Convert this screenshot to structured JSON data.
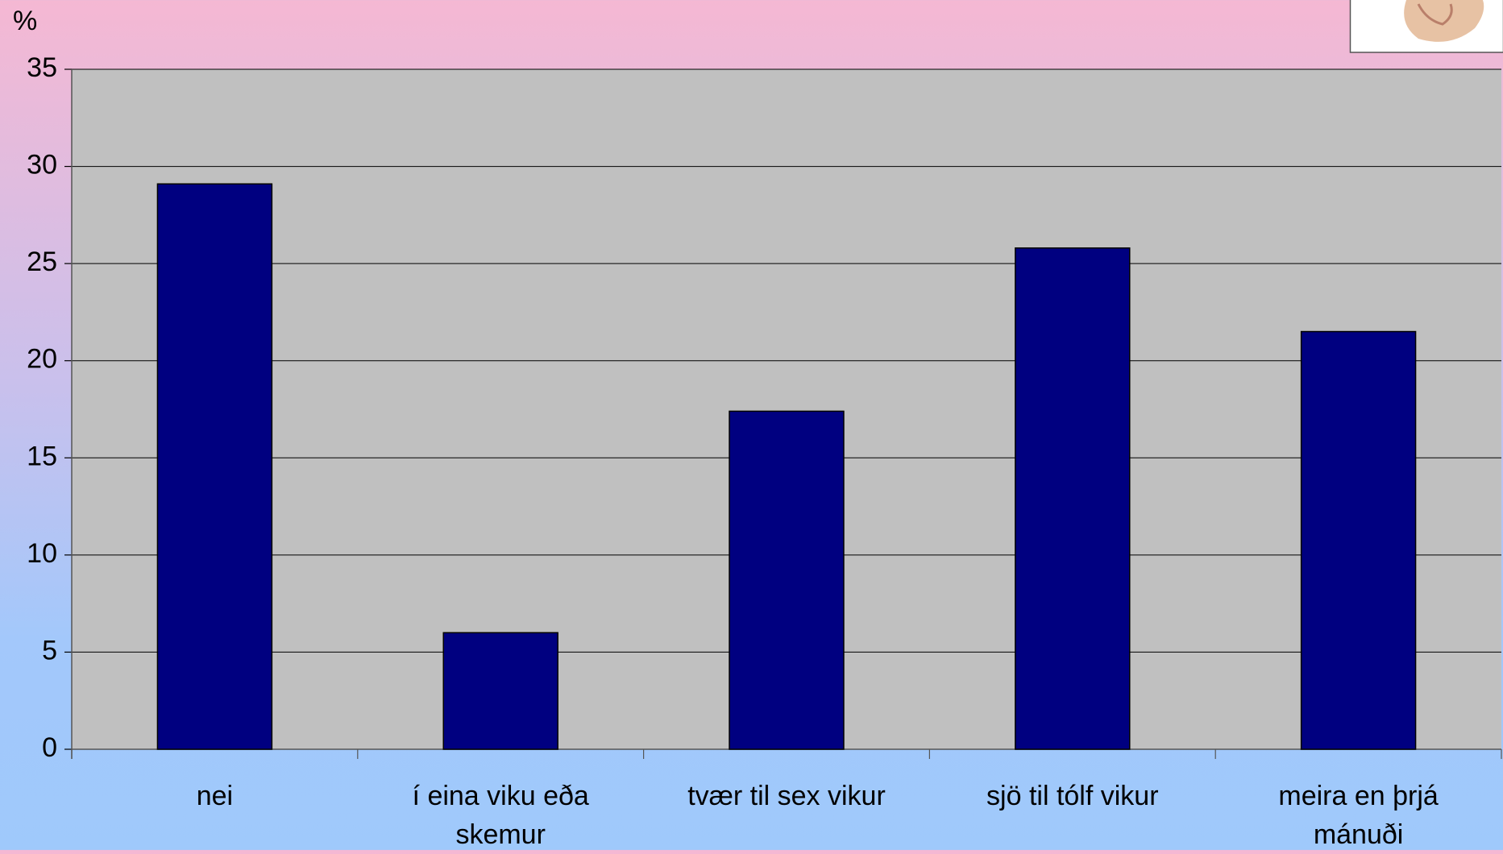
{
  "chart_data": {
    "type": "bar",
    "y_label": "%",
    "categories": [
      "nei",
      "í eina viku eða skemur",
      "tvær til sex vikur",
      "sjö til tólf vikur",
      "meira en þrjá mánuði"
    ],
    "values": [
      29.1,
      6.0,
      17.4,
      25.8,
      21.5
    ],
    "color": "#000080",
    "ylim": [
      0,
      35
    ],
    "yticks": [
      0,
      5,
      10,
      15,
      20,
      25,
      30,
      35
    ],
    "grid": true
  }
}
